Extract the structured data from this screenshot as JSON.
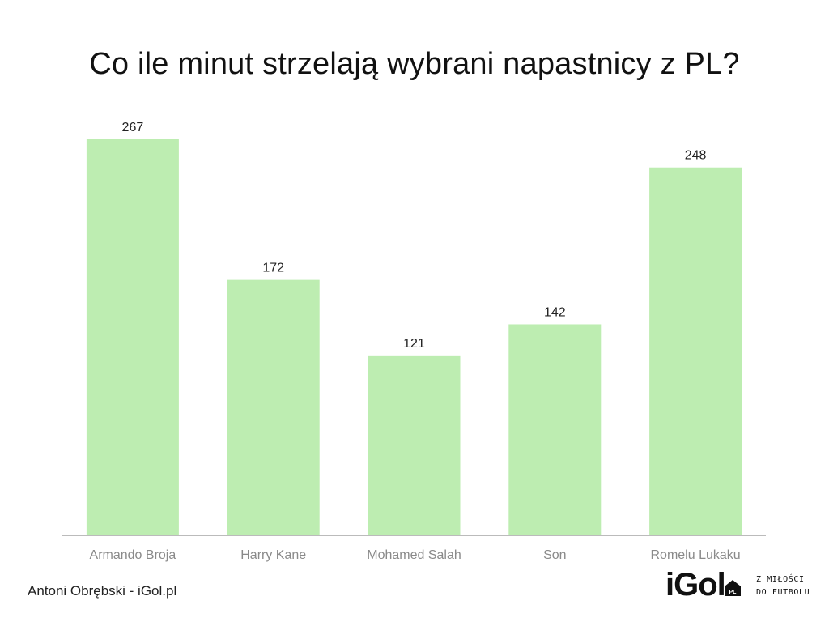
{
  "chart_data": {
    "type": "bar",
    "title": "Co ile minut strzelają wybrani napastnicy z PL?",
    "categories": [
      "Armando Broja",
      "Harry Kane",
      "Mohamed Salah",
      "Son",
      "Romelu Lukaku"
    ],
    "values": [
      267,
      172,
      121,
      142,
      248
    ],
    "data_labels": [
      "267",
      "172",
      "121",
      "142",
      "248"
    ],
    "xlabel": "",
    "ylabel": "",
    "ylim": [
      0,
      267
    ],
    "grid": false,
    "legend": "none",
    "bar_color": "#bdedb1",
    "axis_color": "#bbbbbb"
  },
  "footer": {
    "credit": "Antoni Obrębski - iGol.pl",
    "logo_text": "iGol",
    "logo_badge": "PL",
    "tagline_1": "Z MIŁOŚCI",
    "tagline_2": "DO FUTBOLU"
  }
}
